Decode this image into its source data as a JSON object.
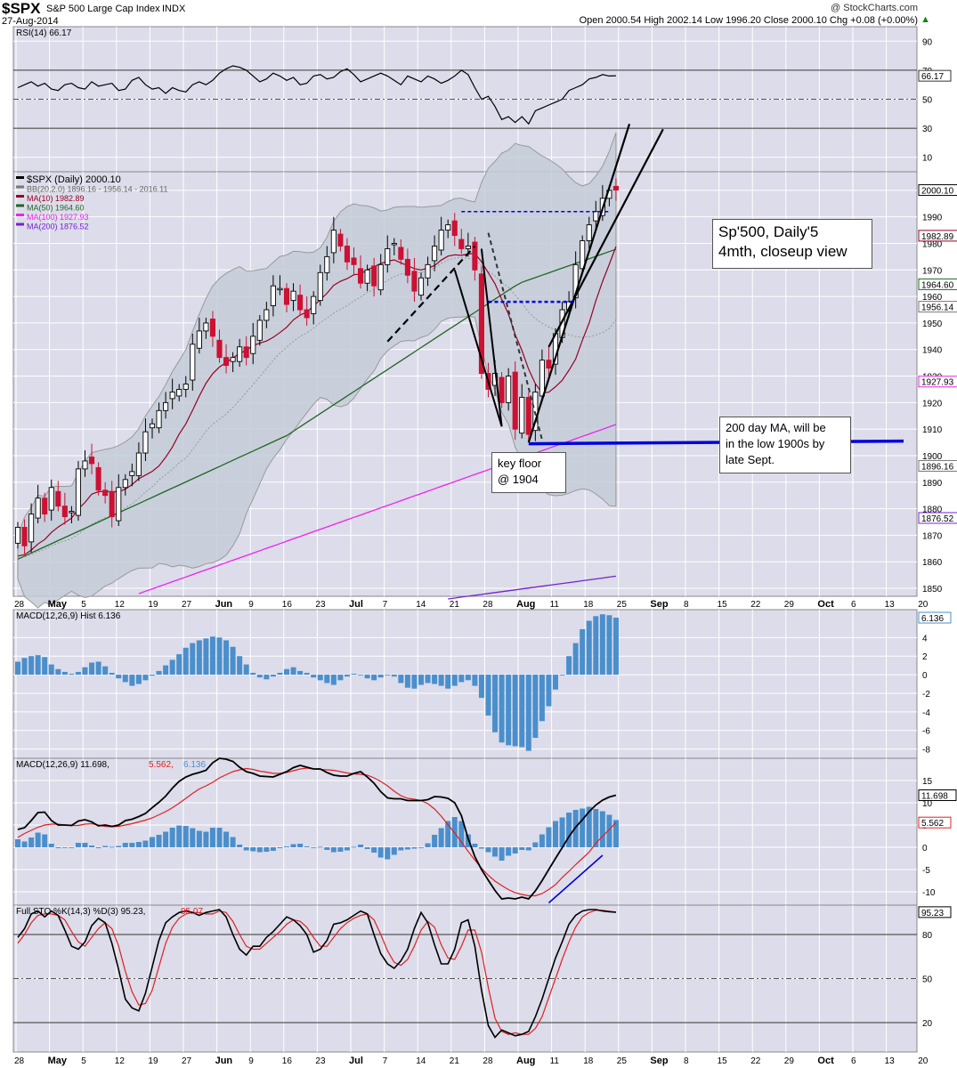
{
  "header": {
    "symbol": "$SPX",
    "name": "S&P 500 Large Cap Index",
    "exchange": "INDX",
    "date": "27-Aug-2014",
    "copyright": "@ StockCharts.com",
    "ohlc_line": "Open 2000.54  High 2002.14  Low 1996.20  Close 2000.10  Chg +0.08 (+0.00%)",
    "up_symbol": "▲"
  },
  "colors": {
    "panel_bg": "#dcdcea",
    "grid": "#ffffff",
    "up_candle": "#ffffff",
    "down_candle": "#cc1133",
    "ma10": "#990022",
    "ma50": "#226622",
    "ma100": "#ee22ee",
    "ma200": "#7722cc",
    "bb_fill": "#c4ccd8",
    "macd_hist": "#4a8fcc",
    "signal": "#e02020",
    "trend_blue": "#0000dd"
  },
  "annotations": {
    "title_box": [
      "Sp'500, Daily'5",
      "4mth, closeup view"
    ],
    "ma200_box": [
      "200 day MA, will be",
      "in the low 1900s by",
      "late Sept."
    ],
    "floor_box": [
      "key floor",
      "@ 1904"
    ]
  },
  "chart_data": [
    {
      "type": "line",
      "panel": "RSI",
      "legend": "RSI(14) 66.17",
      "ylim": [
        0,
        100
      ],
      "ticks": [
        10,
        30,
        50,
        70,
        90
      ],
      "last_value": "66.17",
      "reference_levels": [
        30,
        50,
        70
      ],
      "values": [
        58,
        60,
        62,
        59,
        61,
        57,
        56,
        60,
        61,
        58,
        57,
        62,
        59,
        60,
        61,
        56,
        57,
        63,
        65,
        60,
        57,
        58,
        54,
        58,
        56,
        55,
        60,
        62,
        60,
        63,
        68,
        71,
        73,
        72,
        70,
        66,
        62,
        64,
        68,
        66,
        63,
        65,
        60,
        61,
        66,
        67,
        64,
        65,
        69,
        71,
        67,
        62,
        64,
        66,
        68,
        66,
        63,
        60,
        66,
        64,
        62,
        66,
        64,
        61,
        63,
        66,
        70,
        67,
        58,
        50,
        52,
        45,
        36,
        38,
        34,
        38,
        33,
        42,
        44,
        46,
        48,
        50,
        56,
        58,
        60,
        64,
        65,
        67,
        66,
        66.17
      ]
    },
    {
      "type": "candlestick",
      "panel": "Price",
      "legend": [
        "$SPX (Daily) 2000.10",
        "BB(20,2.0) 1896.16 - 1956.14 - 2016.11",
        "MA(10) 1982.89",
        "MA(50) 1964.60",
        "MA(100) 1927.93",
        "MA(200) 1876.52"
      ],
      "ylim": [
        1847,
        2007
      ],
      "ticks": [
        1850,
        1860,
        1870,
        1880,
        1890,
        1900,
        1910,
        1920,
        1930,
        1940,
        1950,
        1960,
        1970,
        1980,
        1990,
        2000
      ],
      "value_labels": [
        "2000.10",
        "1982.89",
        "1964.60",
        "1956.14",
        "1927.93",
        "1896.16",
        "1876.52"
      ],
      "closes": [
        1873,
        1866,
        1878,
        1884,
        1878,
        1888,
        1881,
        1877,
        1879,
        1895,
        1898,
        1897,
        1887,
        1885,
        1877,
        1888,
        1891,
        1894,
        1901,
        1909,
        1912,
        1917,
        1920,
        1924,
        1925,
        1927,
        1942,
        1947,
        1950,
        1945,
        1937,
        1934,
        1937,
        1941,
        1937,
        1945,
        1951,
        1955,
        1964,
        1963,
        1957,
        1962,
        1955,
        1952,
        1960,
        1969,
        1975,
        1985,
        1979,
        1973,
        1972,
        1965,
        1970,
        1964,
        1972,
        1978,
        1980,
        1974,
        1968,
        1962,
        1967,
        1972,
        1979,
        1985,
        1987,
        1983,
        1978,
        1979,
        1970,
        1931,
        1925,
        1931,
        1920,
        1930,
        1910,
        1922,
        1908,
        1924,
        1936,
        1933,
        1946,
        1955,
        1958,
        1972,
        1981,
        1987,
        1992,
        1997,
        2000,
        2000.1
      ],
      "ma10_last": 1982.89,
      "ma50_last": 1964.6,
      "ma100_last": 1927.93,
      "ma200_last": 1876.52,
      "bb": {
        "lower": 1896.16,
        "middle": 1956.14,
        "upper": 2016.11
      }
    },
    {
      "type": "bar",
      "panel": "MACD Histogram",
      "legend": "MACD(12,26,9) Hist 6.136",
      "ylim": [
        -9,
        7
      ],
      "ticks": [
        -8,
        -6,
        -4,
        -2,
        0,
        2,
        4
      ],
      "last_value": "6.136",
      "values": [
        1.4,
        1.8,
        2.0,
        2.1,
        1.9,
        1.1,
        0.6,
        0.3,
        0.1,
        0.3,
        0.8,
        1.3,
        1.4,
        0.9,
        0.2,
        -0.4,
        -0.8,
        -1.2,
        -1.0,
        -0.6,
        -0.1,
        0.4,
        1.0,
        1.6,
        2.2,
        2.9,
        3.4,
        3.7,
        3.9,
        4.1,
        4.0,
        3.7,
        3.0,
        2.0,
        1.1,
        0.2,
        -0.3,
        -0.5,
        -0.2,
        0.2,
        0.6,
        0.8,
        0.4,
        0.2,
        -0.3,
        -0.6,
        -0.9,
        -1.1,
        -0.6,
        -0.2,
        0.1,
        0.0,
        -0.4,
        -0.6,
        -0.3,
        0.0,
        -0.2,
        -0.9,
        -1.4,
        -1.5,
        -1.1,
        -0.9,
        -1.0,
        -1.2,
        -1.5,
        -1.2,
        -0.8,
        -0.6,
        -1.2,
        -2.5,
        -4.4,
        -6.2,
        -7.3,
        -7.6,
        -7.7,
        -7.8,
        -8.2,
        -6.8,
        -5.0,
        -3.4,
        -1.6,
        0.0,
        2.0,
        3.4,
        4.9,
        5.8,
        6.3,
        6.5,
        6.4,
        6.136
      ]
    },
    {
      "type": "line",
      "panel": "MACD",
      "legend": [
        "MACD(12,26,9) 11.698,",
        "5.562,",
        "6.136"
      ],
      "ylim": [
        -13,
        20
      ],
      "ticks": [
        -10,
        -5,
        0,
        5,
        10,
        15
      ],
      "value_labels": [
        "11.698",
        "5.562"
      ],
      "series": [
        {
          "name": "MACD",
          "values": [
            4.0,
            4.4,
            6.0,
            7.8,
            7.9,
            6.0,
            5.0,
            5.0,
            4.9,
            5.9,
            6.2,
            5.7,
            4.8,
            5.0,
            4.7,
            5.0,
            6.0,
            6.3,
            6.9,
            7.6,
            8.9,
            10.1,
            11.5,
            13.3,
            14.8,
            15.8,
            16.4,
            16.8,
            17.3,
            19.0,
            20.0,
            19.8,
            19.3,
            18.0,
            17.0,
            16.6,
            16.0,
            15.9,
            15.8,
            16.4,
            17.0,
            17.9,
            18.4,
            18.0,
            17.6,
            17.6,
            16.8,
            16.2,
            16.0,
            16.0,
            16.6,
            17.0,
            15.8,
            14.4,
            12.5,
            11.1,
            10.9,
            10.9,
            10.5,
            10.5,
            10.5,
            10.7,
            11.4,
            11.3,
            11.0,
            10.0,
            7.1,
            2.0,
            -2.1,
            -5.0,
            -7.4,
            -9.7,
            -11.6,
            -11.4,
            -11.6,
            -11.2,
            -11.6,
            -9.8,
            -7.5,
            -5.0,
            -2.5,
            -0.1,
            2.4,
            4.5,
            6.2,
            8.0,
            9.5,
            10.6,
            11.3,
            11.698
          ]
        },
        {
          "name": "Signal",
          "values": [
            2.2,
            3.1,
            3.8,
            4.5,
            5.0,
            5.2,
            5.2,
            5.0,
            4.9,
            4.9,
            5.2,
            5.3,
            5.0,
            4.7,
            4.6,
            4.7,
            5.0,
            5.3,
            5.7,
            6.1,
            6.6,
            7.3,
            8.0,
            8.9,
            9.9,
            11.0,
            12.1,
            13.1,
            13.8,
            14.6,
            15.6,
            16.3,
            17.0,
            17.4,
            17.7,
            17.5,
            17.1,
            16.9,
            16.6,
            16.6,
            16.8,
            17.2,
            17.6,
            17.8,
            17.6,
            17.5,
            17.4,
            17.3,
            17.0,
            16.7,
            16.5,
            16.4,
            16.2,
            15.6,
            14.8,
            13.8,
            12.6,
            11.6,
            11.0,
            10.8,
            10.5,
            9.8,
            8.6,
            7.0,
            5.1,
            3.2,
            1.2,
            -0.9,
            -2.9,
            -4.7,
            -6.3,
            -7.6,
            -8.6,
            -9.5,
            -10.2,
            -10.6,
            -10.9,
            -10.9,
            -10.4,
            -9.5,
            -8.4,
            -6.8,
            -5.4,
            -3.9,
            -2.5,
            -1.1,
            0.9,
            2.5,
            4.0,
            5.562
          ]
        }
      ]
    },
    {
      "type": "line",
      "panel": "Full STO",
      "legend": [
        "Full STO %K(14,3) %D(3) 95.23,",
        "95.07"
      ],
      "ylim": [
        0,
        100
      ],
      "ticks": [
        20,
        50,
        80
      ],
      "value_labels": [
        "95.23"
      ],
      "series": [
        {
          "name": "%K",
          "values": [
            78,
            84,
            94,
            96,
            92,
            96,
            93,
            83,
            72,
            70,
            75,
            86,
            91,
            88,
            74,
            56,
            36,
            30,
            28,
            40,
            58,
            76,
            88,
            92,
            95,
            96,
            95,
            93,
            95,
            96,
            97,
            92,
            80,
            70,
            66,
            72,
            72,
            78,
            82,
            87,
            92,
            90,
            86,
            80,
            68,
            70,
            76,
            87,
            88,
            90,
            93,
            96,
            94,
            80,
            67,
            60,
            57,
            62,
            70,
            84,
            95,
            88,
            73,
            60,
            60,
            70,
            88,
            90,
            72,
            42,
            18,
            10,
            15,
            13,
            11,
            12,
            14,
            24,
            36,
            50,
            64,
            75,
            87,
            93,
            96,
            97,
            97,
            96,
            95.5,
            95.23
          ]
        },
        {
          "name": "%D",
          "values": [
            74,
            80,
            88,
            93,
            94,
            94,
            93,
            90,
            82,
            75,
            72,
            78,
            84,
            88,
            84,
            72,
            55,
            41,
            32,
            33,
            42,
            58,
            74,
            85,
            91,
            94,
            95,
            95,
            94,
            94,
            96,
            95,
            89,
            80,
            72,
            70,
            70,
            74,
            78,
            82,
            87,
            90,
            89,
            85,
            78,
            72,
            72,
            78,
            84,
            88,
            91,
            93,
            94,
            90,
            80,
            69,
            61,
            59,
            63,
            72,
            83,
            89,
            85,
            73,
            64,
            63,
            72,
            83,
            83,
            68,
            44,
            23,
            14,
            12,
            13,
            12,
            12,
            16,
            24,
            37,
            50,
            63,
            75,
            85,
            92,
            95,
            96.5,
            96.5,
            95.8,
            95.07
          ]
        }
      ]
    }
  ],
  "x_axis_labels": [
    "28",
    "May",
    "5",
    "12",
    "19",
    "27",
    "Jun",
    "9",
    "16",
    "23",
    "Jul",
    "7",
    "14",
    "21",
    "28",
    "Aug",
    "11",
    "18",
    "25",
    "Sep",
    "8",
    "15",
    "22",
    "29",
    "Oct",
    "6",
    "13",
    "20"
  ]
}
